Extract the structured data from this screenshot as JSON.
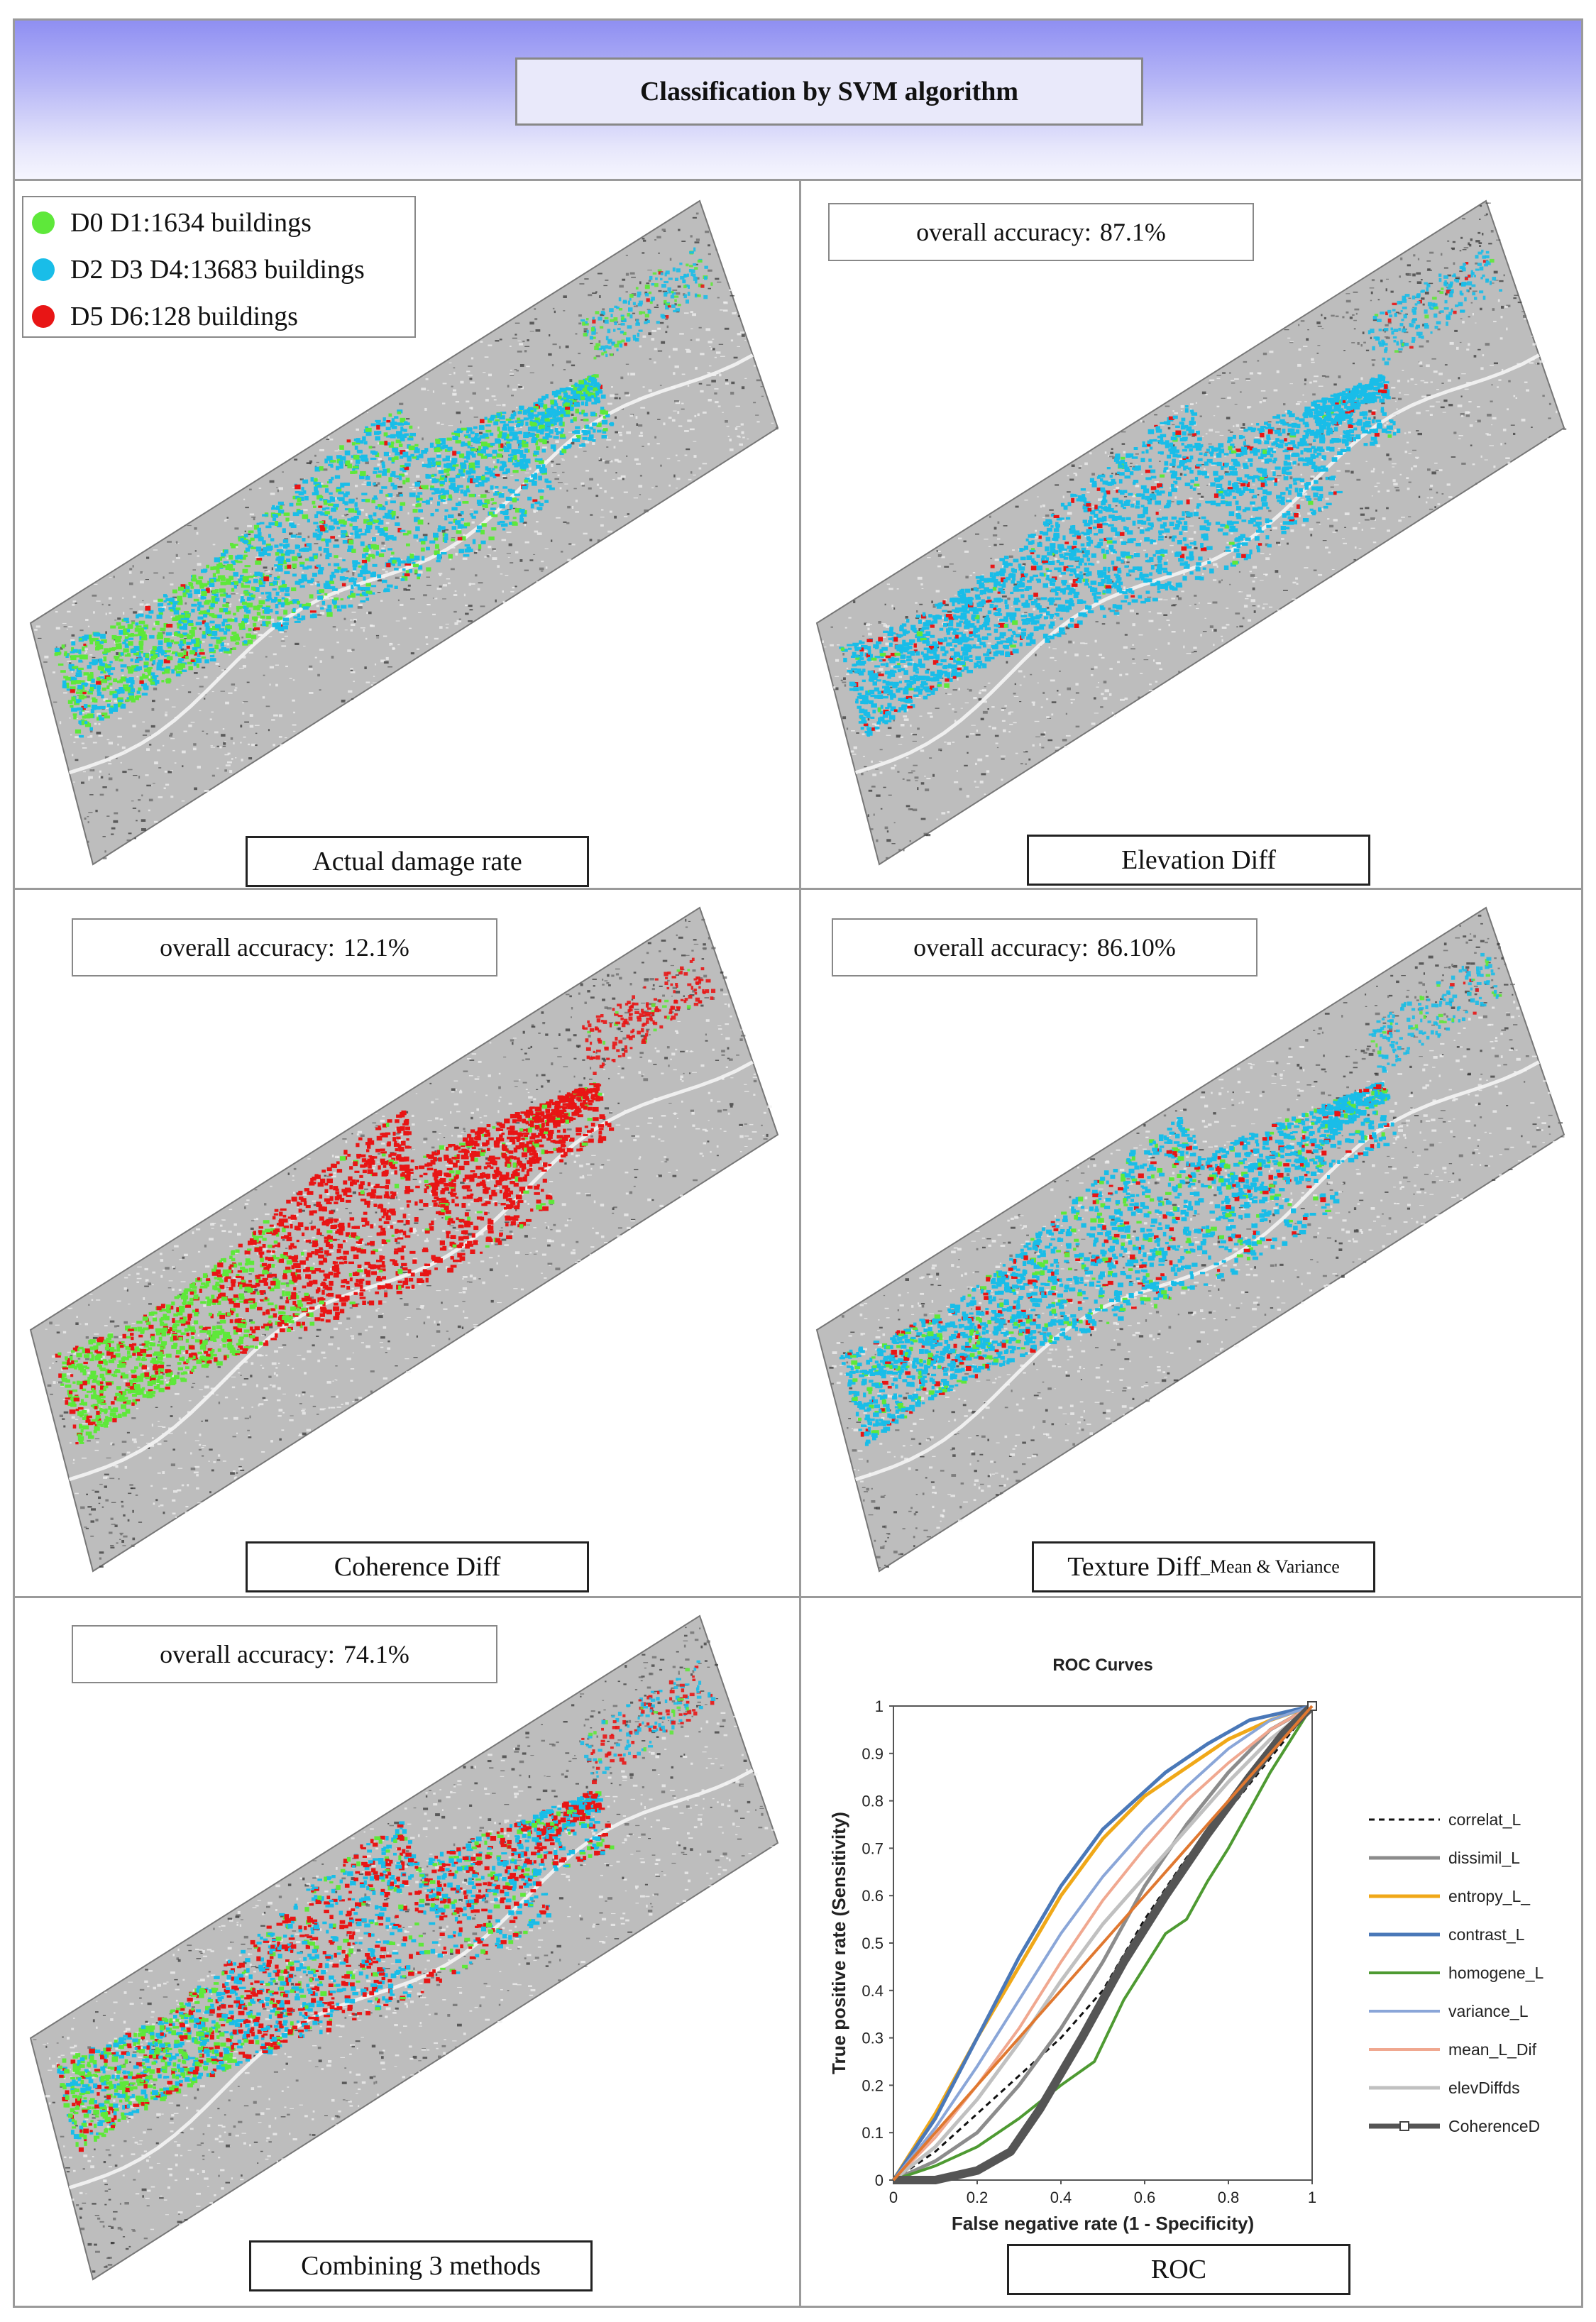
{
  "title": "Classification by SVM algorithm",
  "legend": [
    {
      "label": "D0 D1:1634 buildings",
      "color": "#5ee83a"
    },
    {
      "label": "D2 D3 D4:13683 buildings",
      "color": "#19bde8"
    },
    {
      "label": "D5 D6:128 buildings",
      "color": "#e81515"
    }
  ],
  "panels": {
    "actual": {
      "label": "Actual damage rate"
    },
    "elevation": {
      "label": "Elevation Diff",
      "acc_prefix": "overall accuracy:",
      "acc_value": "87.1%"
    },
    "coherence": {
      "label": "Coherence Diff",
      "acc_prefix": "overall accuracy:",
      "acc_value": "12.1%"
    },
    "texture": {
      "label_main": "Texture Diff",
      "label_sub": "_Mean & Variance",
      "acc_prefix": "overall accuracy:",
      "acc_value": "86.10%"
    },
    "combined": {
      "label": "Combining 3 methods",
      "acc_prefix": "overall accuracy:",
      "acc_value": "74.1%"
    },
    "roc": {
      "label": "ROC"
    }
  },
  "chart_data": {
    "type": "line",
    "title": "ROC Curves",
    "xlabel": "False negative rate (1 - Specificity)",
    "ylabel": "True positive rate (Sensitivity)",
    "xlim": [
      0,
      1
    ],
    "ylim": [
      0,
      1
    ],
    "xticks": [
      "0",
      "0.2",
      "0.4",
      "0.6",
      "0.8",
      "1"
    ],
    "yticks": [
      "0",
      "0.1",
      "0.2",
      "0.3",
      "0.4",
      "0.5",
      "0.6",
      "0.7",
      "0.8",
      "0.9",
      "1"
    ],
    "legend_position": "right",
    "series": [
      {
        "name": "correlat_L",
        "color": "#111111",
        "dash": true,
        "width": 3,
        "points": [
          [
            0,
            0
          ],
          [
            0.1,
            0.06
          ],
          [
            0.2,
            0.14
          ],
          [
            0.3,
            0.22
          ],
          [
            0.4,
            0.3
          ],
          [
            0.5,
            0.4
          ],
          [
            0.6,
            0.55
          ],
          [
            0.7,
            0.68
          ],
          [
            0.8,
            0.78
          ],
          [
            0.9,
            0.89
          ],
          [
            1,
            1
          ]
        ]
      },
      {
        "name": "dissimil_L",
        "color": "#8c8c8c",
        "width": 5,
        "points": [
          [
            0,
            0
          ],
          [
            0.1,
            0.04
          ],
          [
            0.2,
            0.1
          ],
          [
            0.3,
            0.2
          ],
          [
            0.4,
            0.32
          ],
          [
            0.5,
            0.46
          ],
          [
            0.6,
            0.62
          ],
          [
            0.7,
            0.75
          ],
          [
            0.8,
            0.86
          ],
          [
            0.9,
            0.95
          ],
          [
            1,
            1
          ]
        ]
      },
      {
        "name": "entropy_L_",
        "color": "#f0a818",
        "width": 5,
        "points": [
          [
            0,
            0
          ],
          [
            0.1,
            0.14
          ],
          [
            0.2,
            0.3
          ],
          [
            0.3,
            0.45
          ],
          [
            0.4,
            0.6
          ],
          [
            0.5,
            0.72
          ],
          [
            0.6,
            0.81
          ],
          [
            0.7,
            0.87
          ],
          [
            0.8,
            0.93
          ],
          [
            0.9,
            0.97
          ],
          [
            1,
            1
          ]
        ]
      },
      {
        "name": "contrast_L",
        "color": "#4a78b8",
        "width": 5,
        "points": [
          [
            0,
            0
          ],
          [
            0.1,
            0.13
          ],
          [
            0.2,
            0.3
          ],
          [
            0.3,
            0.47
          ],
          [
            0.4,
            0.62
          ],
          [
            0.5,
            0.74
          ],
          [
            0.55,
            0.78
          ],
          [
            0.65,
            0.86
          ],
          [
            0.75,
            0.92
          ],
          [
            0.85,
            0.97
          ],
          [
            1,
            1
          ]
        ]
      },
      {
        "name": "homogene_L",
        "color": "#4e9a32",
        "width": 4,
        "points": [
          [
            0,
            0
          ],
          [
            0.1,
            0.03
          ],
          [
            0.2,
            0.07
          ],
          [
            0.3,
            0.13
          ],
          [
            0.4,
            0.2
          ],
          [
            0.48,
            0.25
          ],
          [
            0.55,
            0.38
          ],
          [
            0.6,
            0.45
          ],
          [
            0.65,
            0.52
          ],
          [
            0.7,
            0.55
          ],
          [
            0.75,
            0.63
          ],
          [
            0.8,
            0.7
          ],
          [
            0.85,
            0.78
          ],
          [
            0.9,
            0.86
          ],
          [
            1,
            1
          ]
        ]
      },
      {
        "name": "variance_L",
        "color": "#8aa6d8",
        "width": 4,
        "points": [
          [
            0,
            0
          ],
          [
            0.1,
            0.11
          ],
          [
            0.2,
            0.24
          ],
          [
            0.3,
            0.38
          ],
          [
            0.4,
            0.52
          ],
          [
            0.5,
            0.64
          ],
          [
            0.6,
            0.74
          ],
          [
            0.7,
            0.83
          ],
          [
            0.8,
            0.91
          ],
          [
            0.9,
            0.97
          ],
          [
            1,
            1
          ]
        ]
      },
      {
        "name": "mean_L_Dif",
        "color": "#f0a890",
        "width": 4,
        "points": [
          [
            0,
            0
          ],
          [
            0.1,
            0.09
          ],
          [
            0.2,
            0.2
          ],
          [
            0.3,
            0.32
          ],
          [
            0.4,
            0.46
          ],
          [
            0.5,
            0.59
          ],
          [
            0.6,
            0.7
          ],
          [
            0.7,
            0.8
          ],
          [
            0.8,
            0.88
          ],
          [
            0.9,
            0.95
          ],
          [
            1,
            1
          ]
        ]
      },
      {
        "name": "elevDiffds",
        "color": "#c0c0c0",
        "width": 5,
        "points": [
          [
            0,
            0
          ],
          [
            0.1,
            0.07
          ],
          [
            0.2,
            0.17
          ],
          [
            0.3,
            0.29
          ],
          [
            0.4,
            0.42
          ],
          [
            0.5,
            0.54
          ],
          [
            0.6,
            0.64
          ],
          [
            0.7,
            0.74
          ],
          [
            0.8,
            0.84
          ],
          [
            0.9,
            0.93
          ],
          [
            1,
            1
          ]
        ]
      },
      {
        "name": "CoherenceD",
        "color": "#555555",
        "width": 12,
        "marker": "square",
        "points": [
          [
            0,
            0
          ],
          [
            0.1,
            0.0
          ],
          [
            0.2,
            0.02
          ],
          [
            0.28,
            0.06
          ],
          [
            0.35,
            0.15
          ],
          [
            0.45,
            0.3
          ],
          [
            0.55,
            0.46
          ],
          [
            0.65,
            0.6
          ],
          [
            0.75,
            0.73
          ],
          [
            0.85,
            0.85
          ],
          [
            0.93,
            0.94
          ],
          [
            1,
            1
          ]
        ]
      },
      {
        "name": "",
        "color": "#e07830",
        "width": 4,
        "points": [
          [
            0,
            0
          ],
          [
            0.2,
            0.2
          ],
          [
            0.4,
            0.4
          ],
          [
            0.6,
            0.6
          ],
          [
            0.8,
            0.8
          ],
          [
            1,
            1
          ]
        ]
      }
    ]
  }
}
